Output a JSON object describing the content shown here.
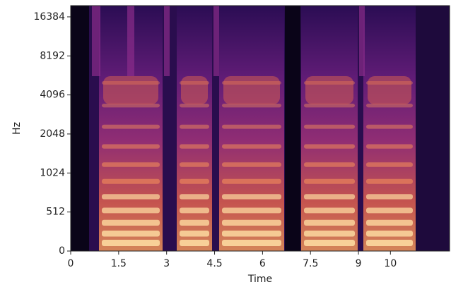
{
  "chart_data": {
    "type": "spectrogram",
    "xlabel": "Time",
    "ylabel": "Hz",
    "xlim": [
      0,
      11.85
    ],
    "xticks": [
      0,
      1.5,
      3,
      4.5,
      6,
      7.5,
      9,
      10
    ],
    "ylim": [
      0,
      20000
    ],
    "yticks": [
      0,
      512,
      1024,
      2048,
      4096,
      8192,
      16384
    ],
    "yscale": "symlog"
  }
}
